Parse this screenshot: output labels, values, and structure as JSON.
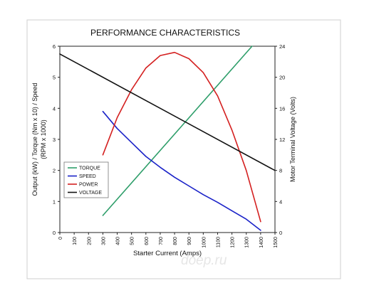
{
  "chart_data": {
    "type": "line",
    "title": "PERFORMANCE CHARACTERISTICS",
    "xlabel": "Starter Current (Amps)",
    "ylabel_left_line1": "Output (kW) / Torque (Nm x 10) / Speed",
    "ylabel_left_line2": "(RPM x 1000)",
    "ylabel_right": "Motor Terminal Voltage (Volts)",
    "xlim": [
      0,
      1500
    ],
    "ylim_left": [
      0,
      6
    ],
    "ylim_right": [
      0,
      24
    ],
    "x_ticks": [
      "0",
      "100",
      "200",
      "300",
      "400",
      "500",
      "600",
      "700",
      "800",
      "900",
      "1000",
      "1100",
      "1200",
      "1300",
      "1400",
      "1500"
    ],
    "y_left_ticks": [
      "0",
      "1",
      "2",
      "3",
      "4",
      "5",
      "6"
    ],
    "y_right_ticks": [
      "0",
      "4",
      "8",
      "12",
      "16",
      "20",
      "24"
    ],
    "legend_position": "left",
    "grid": false,
    "series": [
      {
        "name": "TORQUE",
        "color": "#2e9e6a",
        "axis": "left",
        "x": [
          300,
          1340
        ],
        "y": [
          0.55,
          6.0
        ]
      },
      {
        "name": "SPEED",
        "color": "#1a22c8",
        "axis": "left",
        "x": [
          300,
          400,
          500,
          600,
          700,
          800,
          900,
          1000,
          1100,
          1200,
          1300,
          1400
        ],
        "y": [
          3.9,
          3.35,
          2.9,
          2.45,
          2.1,
          1.78,
          1.5,
          1.22,
          0.97,
          0.7,
          0.43,
          0.07
        ]
      },
      {
        "name": "POWER",
        "color": "#d42020",
        "axis": "left",
        "x": [
          300,
          350,
          400,
          500,
          600,
          700,
          800,
          900,
          1000,
          1100,
          1200,
          1300,
          1400
        ],
        "y": [
          2.5,
          3.1,
          3.7,
          4.6,
          5.3,
          5.7,
          5.8,
          5.6,
          5.15,
          4.4,
          3.3,
          2.0,
          0.35
        ]
      },
      {
        "name": "VOLTAGE",
        "color": "#111111",
        "axis": "right",
        "x": [
          0,
          1500
        ],
        "y": [
          23.0,
          8.0
        ]
      }
    ]
  },
  "watermark": "doep.ru"
}
